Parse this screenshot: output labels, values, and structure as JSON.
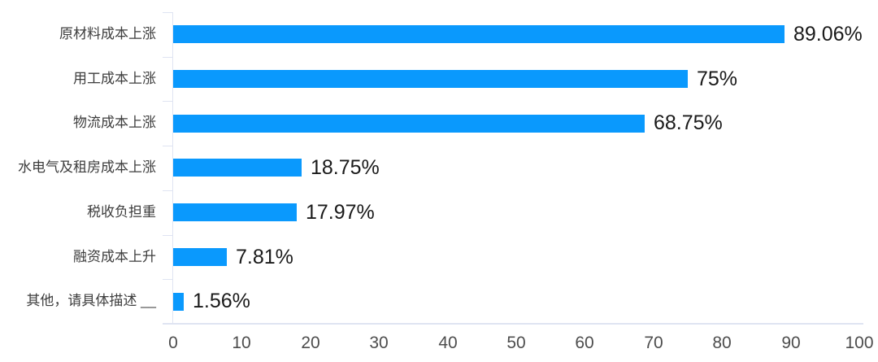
{
  "chart_data": {
    "type": "bar",
    "orientation": "horizontal",
    "title": "",
    "xlabel": "",
    "ylabel": "",
    "categories": [
      "原材料成本上涨",
      "用工成本上涨",
      "物流成本上涨",
      "水电气及租房成本上涨",
      "税收负担重",
      "融资成本上升",
      "其他，请具体描述 __"
    ],
    "values": [
      89.06,
      75,
      68.75,
      18.75,
      17.97,
      7.81,
      1.56
    ],
    "value_labels": [
      "89.06%",
      "75%",
      "68.75%",
      "18.75%",
      "17.97%",
      "7.81%",
      "1.56%"
    ],
    "x_ticks": [
      0,
      10,
      20,
      30,
      40,
      50,
      60,
      70,
      80,
      90,
      100
    ],
    "xlim": [
      0,
      100
    ],
    "grid": false,
    "legend": false,
    "colors": {
      "bar": "#0a99fd",
      "axis_line": "#dfe4f2",
      "category_label": "#3d3d3d",
      "value_label": "#1a1a1a",
      "tick_label": "#4d4d4d",
      "background": "#ffffff"
    }
  }
}
